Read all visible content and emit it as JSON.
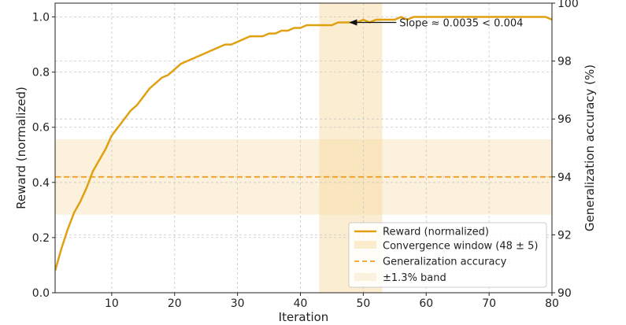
{
  "chart_data": {
    "type": "line",
    "title": "",
    "xlabel": "Iteration",
    "ylabel": "Reward (normalized)",
    "y2label": "Generalization accuracy (%)",
    "xlim": [
      1,
      80
    ],
    "ylim": [
      0,
      1.05
    ],
    "y2lim": [
      90,
      100
    ],
    "xticks": [
      10,
      20,
      30,
      40,
      50,
      60,
      70,
      80
    ],
    "yticks": [
      0.0,
      0.2,
      0.4,
      0.6,
      0.8,
      1.0
    ],
    "ytick_labels": [
      "0.0",
      "0.2",
      "0.4",
      "0.6",
      "0.8",
      "1.0"
    ],
    "y2ticks": [
      90,
      92,
      94,
      96,
      98,
      100
    ],
    "grid": true,
    "legend_position": "lower-right",
    "series": [
      {
        "name": "Reward (normalized)",
        "axis": "left",
        "color": "#e0a010",
        "x": [
          1,
          2,
          3,
          4,
          5,
          6,
          7,
          8,
          9,
          10,
          11,
          12,
          13,
          14,
          15,
          16,
          17,
          18,
          19,
          20,
          21,
          22,
          23,
          24,
          25,
          26,
          27,
          28,
          29,
          30,
          31,
          32,
          33,
          34,
          35,
          36,
          37,
          38,
          39,
          40,
          41,
          42,
          43,
          44,
          45,
          46,
          47,
          48,
          49,
          50,
          51,
          52,
          53,
          54,
          55,
          56,
          57,
          58,
          59,
          60,
          61,
          62,
          63,
          64,
          65,
          66,
          67,
          68,
          69,
          70,
          71,
          72,
          73,
          74,
          75,
          76,
          77,
          78,
          79,
          80
        ],
        "y": [
          0.08,
          0.16,
          0.23,
          0.29,
          0.33,
          0.38,
          0.44,
          0.48,
          0.52,
          0.57,
          0.6,
          0.63,
          0.66,
          0.68,
          0.71,
          0.74,
          0.76,
          0.78,
          0.79,
          0.81,
          0.83,
          0.84,
          0.85,
          0.86,
          0.87,
          0.88,
          0.89,
          0.9,
          0.9,
          0.91,
          0.92,
          0.93,
          0.93,
          0.93,
          0.94,
          0.94,
          0.95,
          0.95,
          0.96,
          0.96,
          0.97,
          0.97,
          0.97,
          0.97,
          0.97,
          0.98,
          0.98,
          0.98,
          0.98,
          0.99,
          0.98,
          0.99,
          0.99,
          0.99,
          0.99,
          1.0,
          0.99,
          1.0,
          1.0,
          1.0,
          1.0,
          1.0,
          1.0,
          1.0,
          1.0,
          1.0,
          1.0,
          1.0,
          1.0,
          1.0,
          1.0,
          1.0,
          1.0,
          1.0,
          1.0,
          1.0,
          1.0,
          1.0,
          1.0,
          0.99
        ]
      },
      {
        "name": "Generalization accuracy",
        "axis": "right",
        "color": "#f0a020",
        "style": "dashed",
        "value": 94.0
      }
    ],
    "bands": [
      {
        "name": "Convergence window (48 ± 5)",
        "orientation": "vertical",
        "x_range": [
          43,
          53
        ],
        "color": "#f5d79a",
        "opacity": 0.45
      },
      {
        "name": "±1.3% band",
        "orientation": "horizontal",
        "axis": "right",
        "y_range": [
          92.7,
          95.3
        ],
        "color": "#f5d79a",
        "opacity": 0.35
      }
    ],
    "annotation": {
      "text": "Slope ≈ 0.0035 < 0.004",
      "point": [
        48,
        0.98
      ],
      "text_at": [
        56,
        0.98
      ]
    },
    "legend": [
      {
        "label": "Reward (normalized)",
        "kind": "line"
      },
      {
        "label": "Convergence window (48 ± 5)",
        "kind": "band"
      },
      {
        "label": "Generalization accuracy",
        "kind": "dashed"
      },
      {
        "label": "±1.3% band",
        "kind": "band-light"
      }
    ]
  }
}
